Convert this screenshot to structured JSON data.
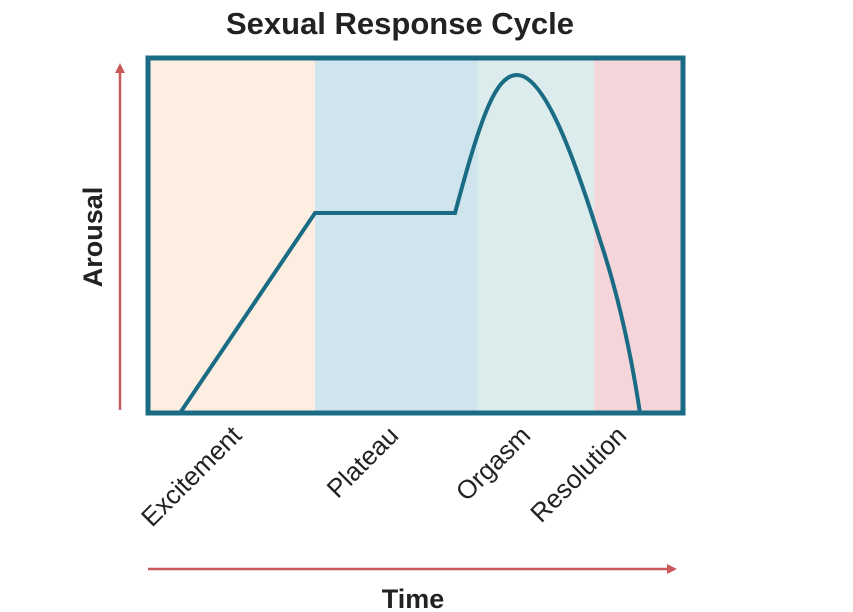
{
  "title": "Sexual Response Cycle",
  "y_label": "Arousal",
  "x_label": "Time",
  "phases": [
    "Excitement",
    "Plateau",
    "Orgasm",
    "Resolution"
  ]
}
